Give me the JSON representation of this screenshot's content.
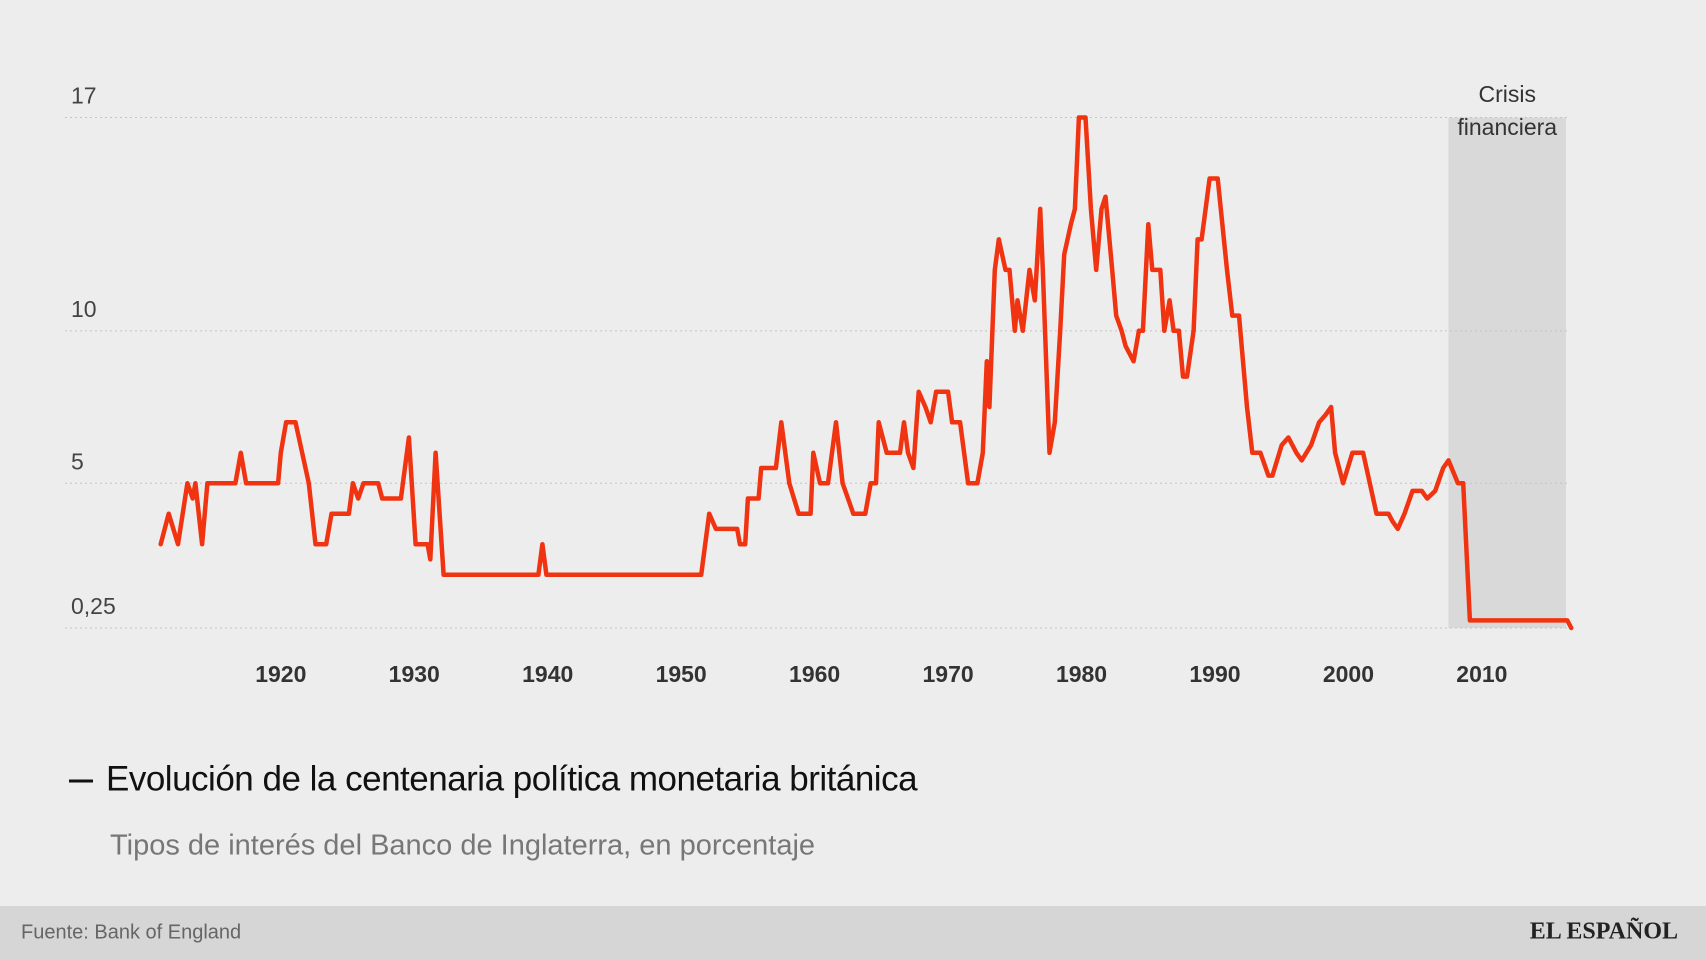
{
  "chart_data": {
    "type": "line",
    "title": "Evolución de la centenaria política monetaria británica",
    "subtitle": "Tipos de interés del Banco de Inglaterra, en porcentaje",
    "color": "#f03412",
    "x": [
      1911.0,
      1911.6,
      1912.3,
      1913.0,
      1913.4,
      1913.6,
      1914.1,
      1914.5,
      1916.6,
      1917.0,
      1917.4,
      1919.8,
      1920.0,
      1920.4,
      1921.1,
      1922.1,
      1922.6,
      1923.4,
      1923.8,
      1925.1,
      1925.4,
      1925.8,
      1926.2,
      1927.3,
      1927.6,
      1929.0,
      1929.3,
      1929.6,
      1930.1,
      1931.0,
      1931.2,
      1931.6,
      1932.2,
      1939.3,
      1939.6,
      1939.9,
      1951.5,
      1952.1,
      1952.6,
      1954.2,
      1954.4,
      1954.8,
      1955.0,
      1955.8,
      1956.0,
      1957.1,
      1957.5,
      1958.1,
      1958.8,
      1959.7,
      1959.9,
      1960.4,
      1961.0,
      1961.6,
      1962.1,
      1962.5,
      1962.9,
      1963.8,
      1964.2,
      1964.6,
      1964.8,
      1965.4,
      1966.4,
      1966.7,
      1967.0,
      1967.4,
      1967.8,
      1968.3,
      1968.7,
      1969.1,
      1970.0,
      1970.3,
      1970.9,
      1971.5,
      1972.2,
      1972.6,
      1972.9,
      1973.1,
      1973.5,
      1973.8,
      1974.3,
      1974.6,
      1975.0,
      1975.2,
      1975.6,
      1976.1,
      1976.5,
      1976.9,
      1977.1,
      1977.6,
      1978.0,
      1978.4,
      1978.7,
      1979.2,
      1979.5,
      1979.8,
      1980.3,
      1980.7,
      1981.1,
      1981.5,
      1981.8,
      1982.3,
      1982.6,
      1983.0,
      1983.3,
      1983.9,
      1984.3,
      1984.6,
      1985.0,
      1985.3,
      1985.9,
      1986.2,
      1986.6,
      1986.9,
      1987.3,
      1987.6,
      1987.9,
      1988.4,
      1988.7,
      1989.0,
      1989.3,
      1989.6,
      1990.2,
      1990.9,
      1991.3,
      1991.8,
      1992.4,
      1992.8,
      1993.4,
      1994.0,
      1994.3,
      1995.0,
      1995.5,
      1996.1,
      1996.5,
      1997.2,
      1997.8,
      1998.3,
      1998.7,
      1999.0,
      1999.6,
      2000.3,
      2001.1,
      2001.6,
      2002.1,
      2003.0,
      2003.3,
      2003.7,
      2004.2,
      2004.8,
      2005.5,
      2005.9,
      2006.5,
      2007.1,
      2007.5,
      2008.2,
      2008.6,
      2009.1,
      2016.4,
      2016.7
    ],
    "values": [
      3,
      4,
      3,
      5,
      4.5,
      5,
      3,
      5,
      5,
      6,
      5,
      5,
      6,
      7,
      7,
      5,
      3,
      3,
      4,
      4,
      5,
      4.5,
      5,
      5,
      4.5,
      4.5,
      5.5,
      6.5,
      3,
      3,
      2.5,
      6,
      2,
      2,
      3,
      2,
      2,
      4,
      3.5,
      3.5,
      3,
      3,
      4.5,
      4.5,
      5.5,
      5.5,
      7,
      5,
      4,
      4,
      6,
      5,
      5,
      7,
      5,
      4.5,
      4,
      4,
      5,
      5,
      7,
      6,
      6,
      7,
      6,
      5.5,
      8,
      7.5,
      7,
      8,
      8,
      7,
      7,
      5,
      5,
      6,
      9,
      7.5,
      12,
      13,
      12,
      12,
      10,
      11,
      10,
      12,
      11,
      14,
      12,
      6,
      7,
      10,
      12.5,
      13.5,
      14,
      17,
      17,
      14,
      12,
      14,
      14.4,
      12,
      10.5,
      10,
      9.5,
      9,
      10,
      10,
      13.5,
      12,
      12,
      10,
      11,
      10,
      10,
      8.5,
      8.5,
      10,
      13,
      13,
      14,
      15,
      15,
      12,
      10.5,
      10.5,
      7.5,
      6,
      6,
      5.25,
      5.25,
      6.25,
      6.5,
      6,
      5.75,
      6.25,
      7,
      7.25,
      7.5,
      6,
      5,
      6,
      6,
      5,
      4,
      4,
      3.75,
      3.5,
      4,
      4.75,
      4.75,
      4.5,
      4.75,
      5.5,
      5.75,
      5,
      5,
      0.5,
      0.5,
      0.25
    ],
    "xlim": [
      1909,
      2019
    ],
    "xticks": [
      1920,
      1930,
      1940,
      1950,
      1960,
      1970,
      1980,
      1990,
      2000,
      2010
    ],
    "ylim": [
      0.25,
      17
    ],
    "yticks": [
      {
        "value": 0.25,
        "label": "0,25"
      },
      5,
      10,
      17
    ],
    "grid": true,
    "annotation": {
      "text": [
        "Crisis",
        "financiera"
      ],
      "x_range": [
        2007.5,
        2016.3
      ],
      "color": "#d9d9d9"
    }
  },
  "footer": {
    "source": "Fuente: Bank of England",
    "brand": "EL ESPAÑOL"
  }
}
